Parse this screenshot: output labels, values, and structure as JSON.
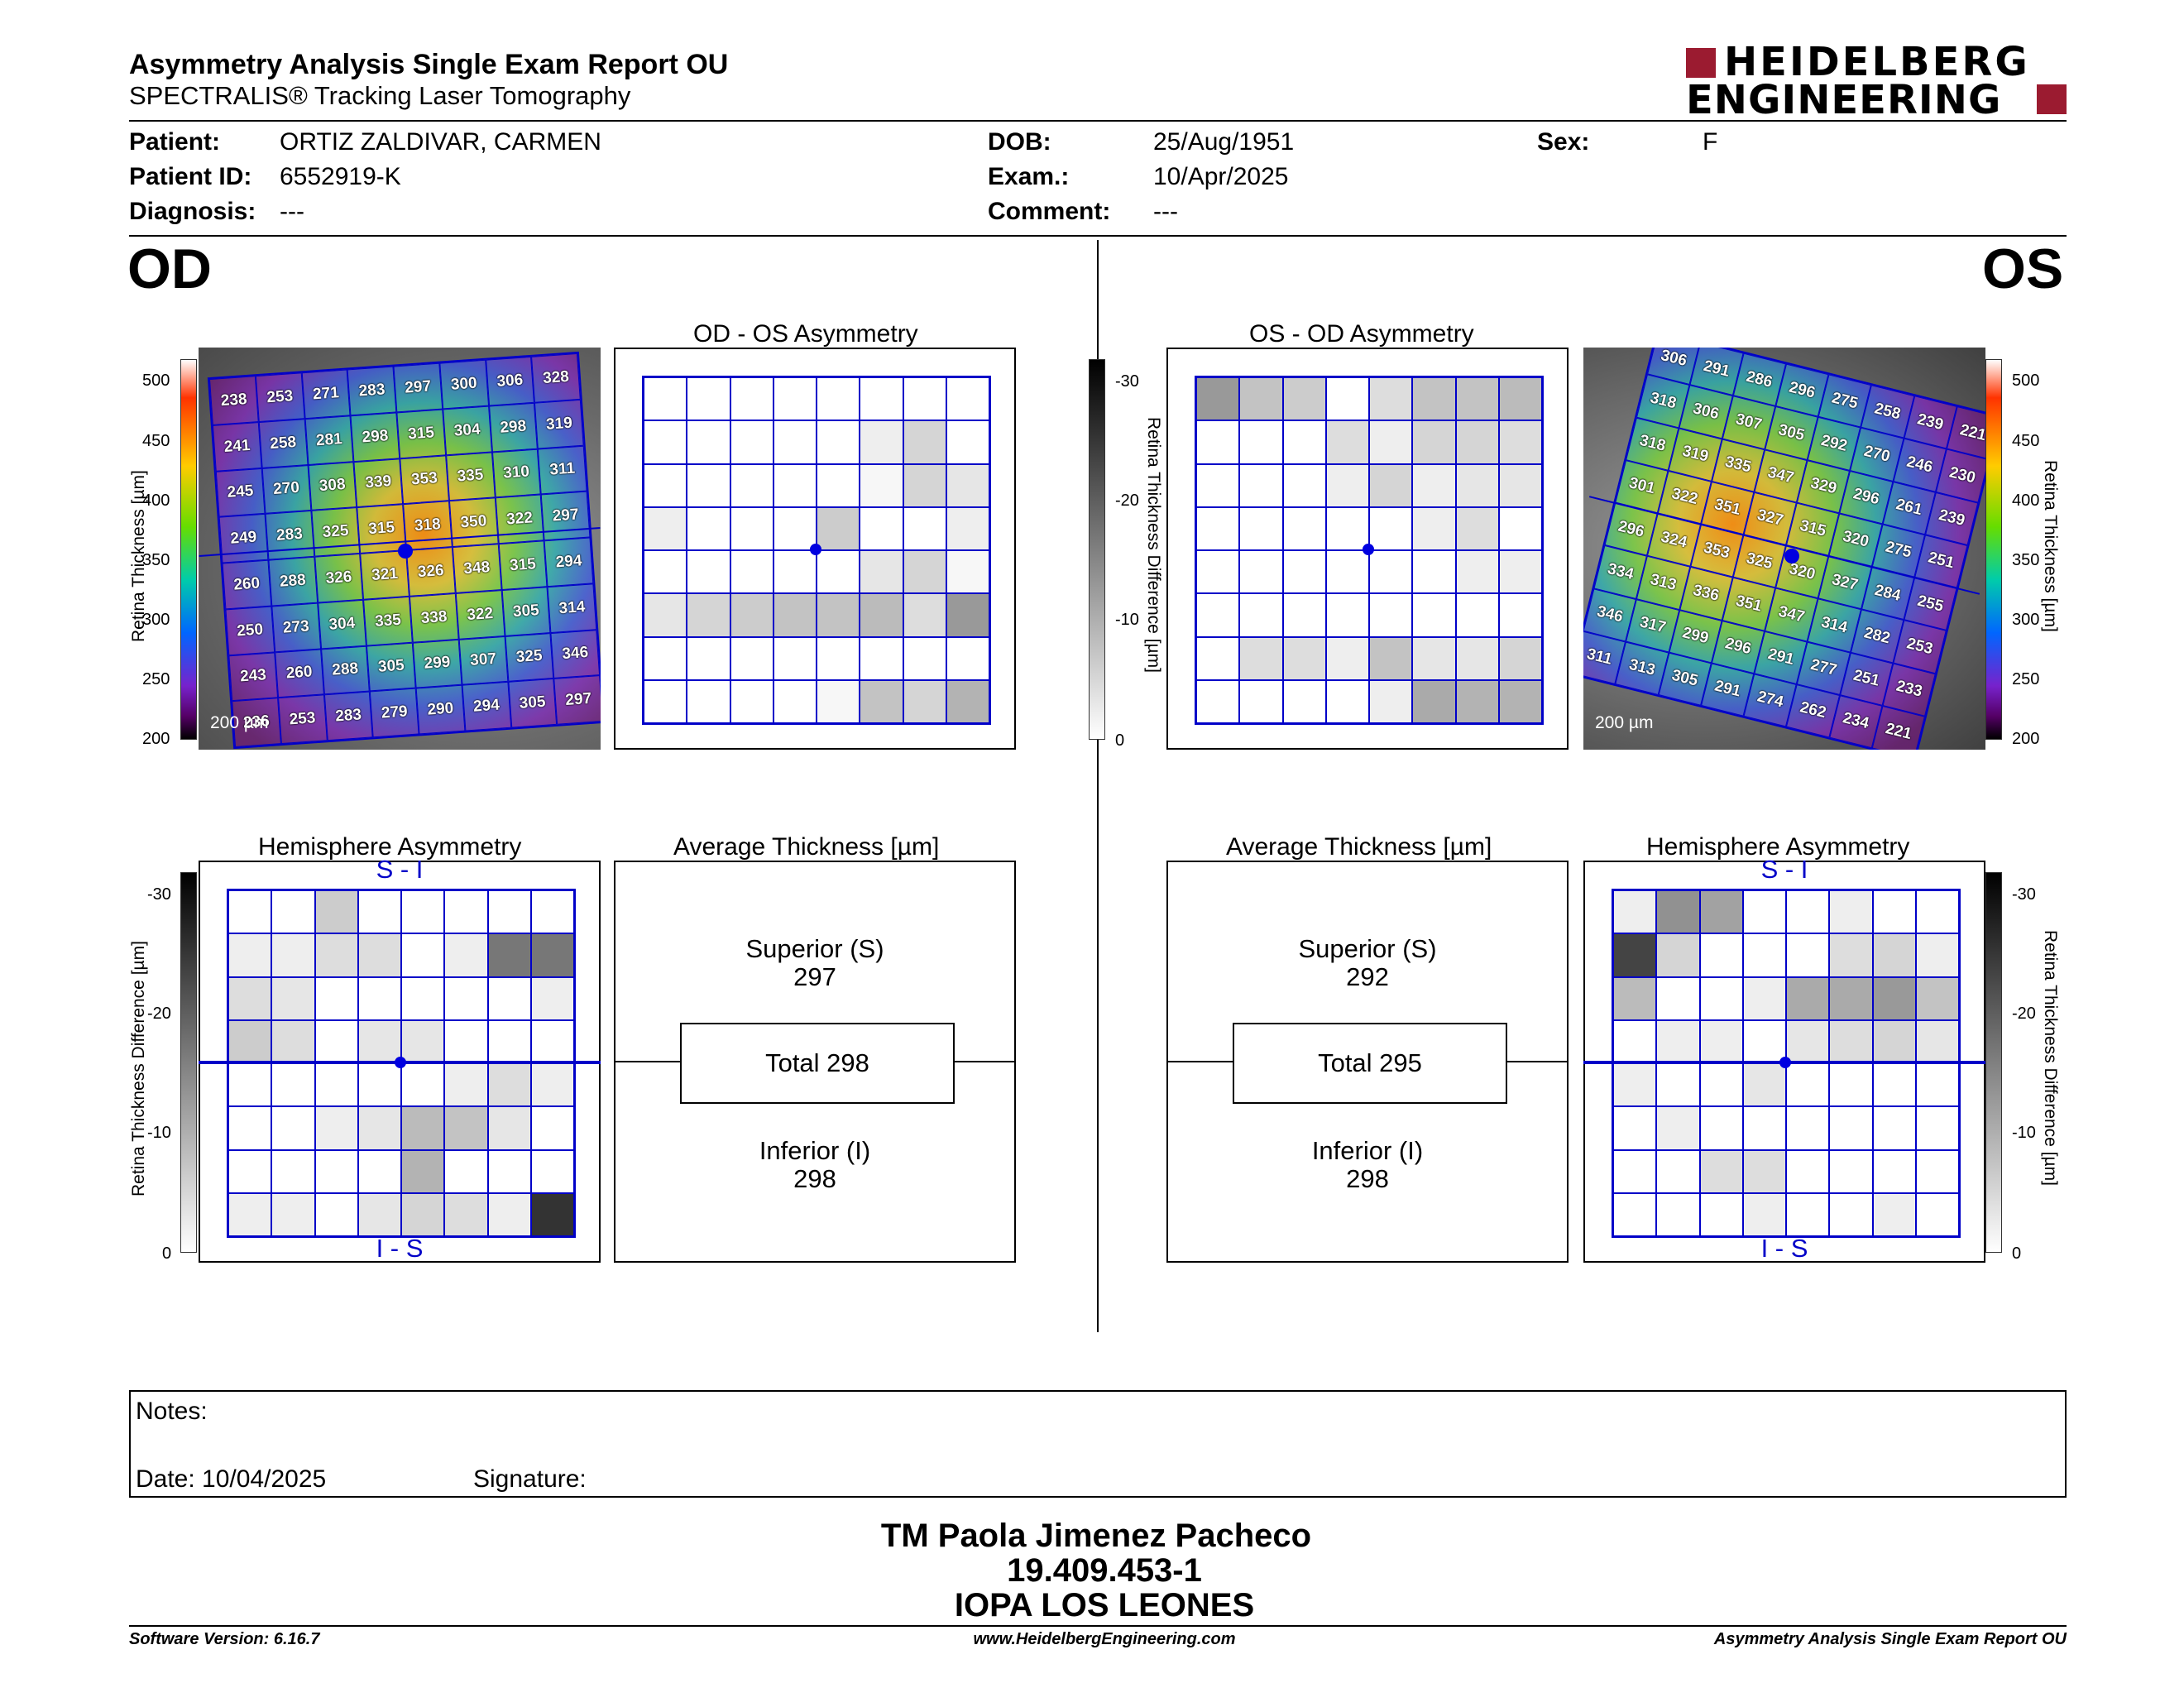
{
  "header": {
    "title": "Asymmetry Analysis Single Exam Report OU",
    "subtitle": "SPECTRALIS® Tracking Laser Tomography",
    "logo_line1": "HEIDELBERG",
    "logo_line2": "ENGINEERING"
  },
  "patient": {
    "patient_label": "Patient:",
    "patient_value": "ORTIZ ZALDIVAR, CARMEN",
    "id_label": "Patient ID:",
    "id_value": "6552919-K",
    "diag_label": "Diagnosis:",
    "diag_value": "---",
    "dob_label": "DOB:",
    "dob_value": "25/Aug/1951",
    "exam_label": "Exam.:",
    "exam_value": "10/Apr/2025",
    "comment_label": "Comment:",
    "comment_value": "---",
    "sex_label": "Sex:",
    "sex_value": "F"
  },
  "od": {
    "eye": "OD",
    "asym_title": "OD - OS Asymmetry",
    "hemi_title": "Hemisphere Asymmetry",
    "avg_title": "Average Thickness [µm]",
    "superior_label": "Superior (S)",
    "superior_value": "297",
    "total": "Total 298",
    "inferior_label": "Inferior (I)",
    "inferior_value": "298",
    "scale": "200 µm",
    "si": "S - I",
    "is": "I - S",
    "thickness": [
      [
        "238",
        "253",
        "271",
        "283",
        "297",
        "300",
        "306",
        "328"
      ],
      [
        "241",
        "258",
        "281",
        "298",
        "315",
        "304",
        "298",
        "319"
      ],
      [
        "245",
        "270",
        "308",
        "339",
        "353",
        "335",
        "310",
        "311"
      ],
      [
        "249",
        "283",
        "325",
        "315",
        "318",
        "350",
        "322",
        "297"
      ],
      [
        "260",
        "288",
        "326",
        "321",
        "326",
        "348",
        "315",
        "294"
      ],
      [
        "250",
        "273",
        "304",
        "335",
        "338",
        "322",
        "305",
        "314"
      ],
      [
        "243",
        "260",
        "288",
        "305",
        "299",
        "307",
        "325",
        "346"
      ],
      [
        "236",
        "253",
        "283",
        "279",
        "290",
        "294",
        "305",
        "297"
      ]
    ],
    "asym_grid": [
      [
        0,
        0,
        0,
        0,
        0,
        0,
        0,
        0
      ],
      [
        0,
        0,
        0,
        0,
        0,
        2,
        5,
        0
      ],
      [
        0,
        0,
        0,
        0,
        0,
        1,
        5,
        3
      ],
      [
        2,
        0,
        0,
        0,
        6,
        0,
        0,
        2
      ],
      [
        0,
        0,
        0,
        0,
        0,
        3,
        5,
        1
      ],
      [
        3,
        5,
        6,
        7,
        7,
        8,
        4,
        12
      ],
      [
        0,
        0,
        0,
        0,
        0,
        0,
        0,
        0
      ],
      [
        0,
        0,
        0,
        0,
        1,
        7,
        5,
        9
      ]
    ],
    "hemi_grid": [
      [
        0,
        0,
        6,
        0,
        0,
        0,
        0,
        0
      ],
      [
        2,
        2,
        4,
        4,
        0,
        2,
        16,
        16
      ],
      [
        4,
        3,
        0,
        0,
        0,
        0,
        0,
        2
      ],
      [
        6,
        4,
        0,
        3,
        3,
        0,
        0,
        0
      ],
      [
        0,
        0,
        0,
        0,
        0,
        2,
        4,
        2
      ],
      [
        0,
        0,
        2,
        3,
        8,
        7,
        3,
        0
      ],
      [
        0,
        0,
        0,
        0,
        9,
        0,
        0,
        0
      ],
      [
        2,
        2,
        0,
        3,
        5,
        4,
        2,
        24
      ]
    ]
  },
  "os": {
    "eye": "OS",
    "asym_title": "OS - OD Asymmetry",
    "hemi_title": "Hemisphere Asymmetry",
    "avg_title": "Average Thickness [µm]",
    "superior_label": "Superior (S)",
    "superior_value": "292",
    "total": "Total 295",
    "inferior_label": "Inferior (I)",
    "inferior_value": "298",
    "scale": "200 µm",
    "si": "S - I",
    "is": "I - S",
    "thickness": [
      [
        "306",
        "291",
        "286",
        "296",
        "275",
        "258",
        "239",
        "221"
      ],
      [
        "318",
        "306",
        "307",
        "305",
        "292",
        "270",
        "246",
        "230"
      ],
      [
        "318",
        "319",
        "335",
        "347",
        "329",
        "296",
        "261",
        "239"
      ],
      [
        "301",
        "322",
        "351",
        "327",
        "315",
        "320",
        "275",
        "251"
      ],
      [
        "296",
        "324",
        "353",
        "325",
        "320",
        "327",
        "284",
        "255"
      ],
      [
        "334",
        "313",
        "336",
        "351",
        "347",
        "314",
        "282",
        "253"
      ],
      [
        "346",
        "317",
        "299",
        "296",
        "291",
        "277",
        "251",
        "233"
      ],
      [
        "311",
        "313",
        "305",
        "291",
        "274",
        "262",
        "234",
        "221"
      ]
    ],
    "asym_grid": [
      [
        12,
        7,
        6,
        0,
        4,
        7,
        7,
        8
      ],
      [
        0,
        0,
        0,
        4,
        2,
        5,
        5,
        4
      ],
      [
        0,
        0,
        0,
        2,
        5,
        2,
        3,
        3
      ],
      [
        0,
        0,
        0,
        0,
        0,
        2,
        4,
        0
      ],
      [
        0,
        0,
        0,
        0,
        0,
        0,
        2,
        2
      ],
      [
        0,
        0,
        0,
        0,
        0,
        0,
        0,
        0
      ],
      [
        0,
        4,
        4,
        2,
        7,
        3,
        3,
        5
      ],
      [
        0,
        0,
        0,
        0,
        2,
        10,
        9,
        9
      ]
    ],
    "hemi_grid": [
      [
        2,
        13,
        11,
        0,
        0,
        2,
        0,
        0
      ],
      [
        22,
        5,
        0,
        0,
        0,
        4,
        5,
        2
      ],
      [
        8,
        0,
        0,
        2,
        10,
        10,
        12,
        7
      ],
      [
        0,
        2,
        2,
        0,
        3,
        4,
        5,
        3
      ],
      [
        2,
        0,
        0,
        3,
        0,
        0,
        0,
        0
      ],
      [
        0,
        2,
        0,
        0,
        0,
        0,
        0,
        0
      ],
      [
        0,
        0,
        4,
        4,
        0,
        0,
        0,
        0
      ],
      [
        0,
        0,
        0,
        2,
        0,
        0,
        2,
        0
      ]
    ]
  },
  "scales": {
    "thickness_ticks": [
      "500",
      "450",
      "400",
      "350",
      "300",
      "250",
      "200"
    ],
    "diff_ticks": [
      "-30",
      "-20",
      "-10",
      "0"
    ],
    "thickness_label": "Retina Thickness [µm]",
    "diff_label": "Retina Thickness Difference [µm]"
  },
  "notes": {
    "notes_label": "Notes:",
    "date_label": "Date: 10/04/2025",
    "signature_label": "Signature:"
  },
  "signoff": {
    "line1": "TM Paola Jimenez Pacheco",
    "line2": "19.409.453-1",
    "line3": "IOPA LOS LEONES"
  },
  "footer": {
    "left": "Software Version: 6.16.7",
    "center": "www.HeidelbergEngineering.com",
    "right": "Asymmetry Analysis Single Exam Report OU"
  }
}
